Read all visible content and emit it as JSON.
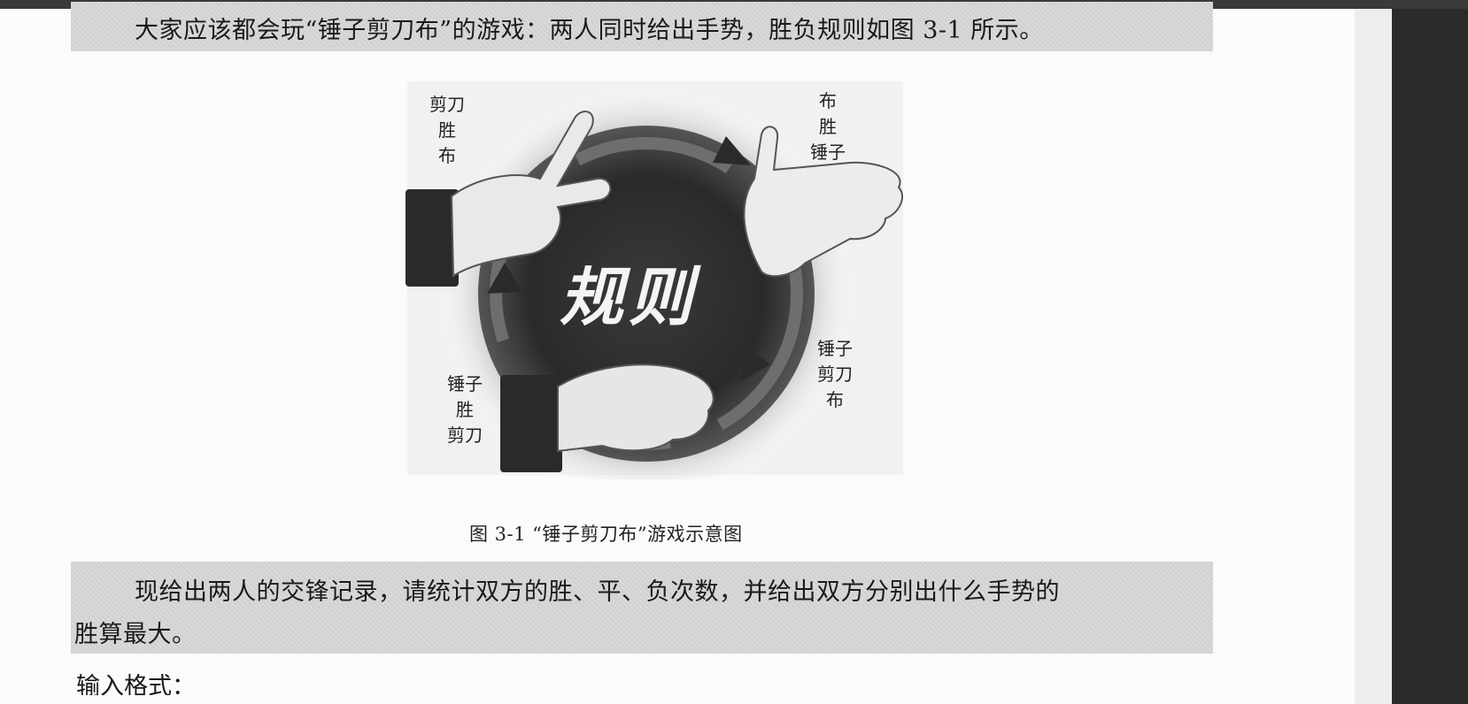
{
  "paragraph1": "大家应该都会玩“锤子剪刀布”的游戏：两人同时给出手势，胜负规则如图 3-1 所示。",
  "figure": {
    "center_title": "规则",
    "labels": {
      "top_left": [
        "剪刀",
        "胜",
        "布"
      ],
      "top_right": [
        "布",
        "胜",
        "锤子"
      ],
      "bottom_right": [
        "锤子",
        "剪刀",
        "布"
      ],
      "bottom_left": [
        "锤子",
        "胜",
        "剪刀"
      ]
    },
    "caption": "图 3-1 “锤子剪刀布”游戏示意图"
  },
  "paragraph2": {
    "line1": "现给出两人的交锋记录，请统计双方的胜、平、负次数，并给出双方分别出什么手势的",
    "line2": "胜算最大。"
  },
  "cutoff_text": "输入格式："
}
